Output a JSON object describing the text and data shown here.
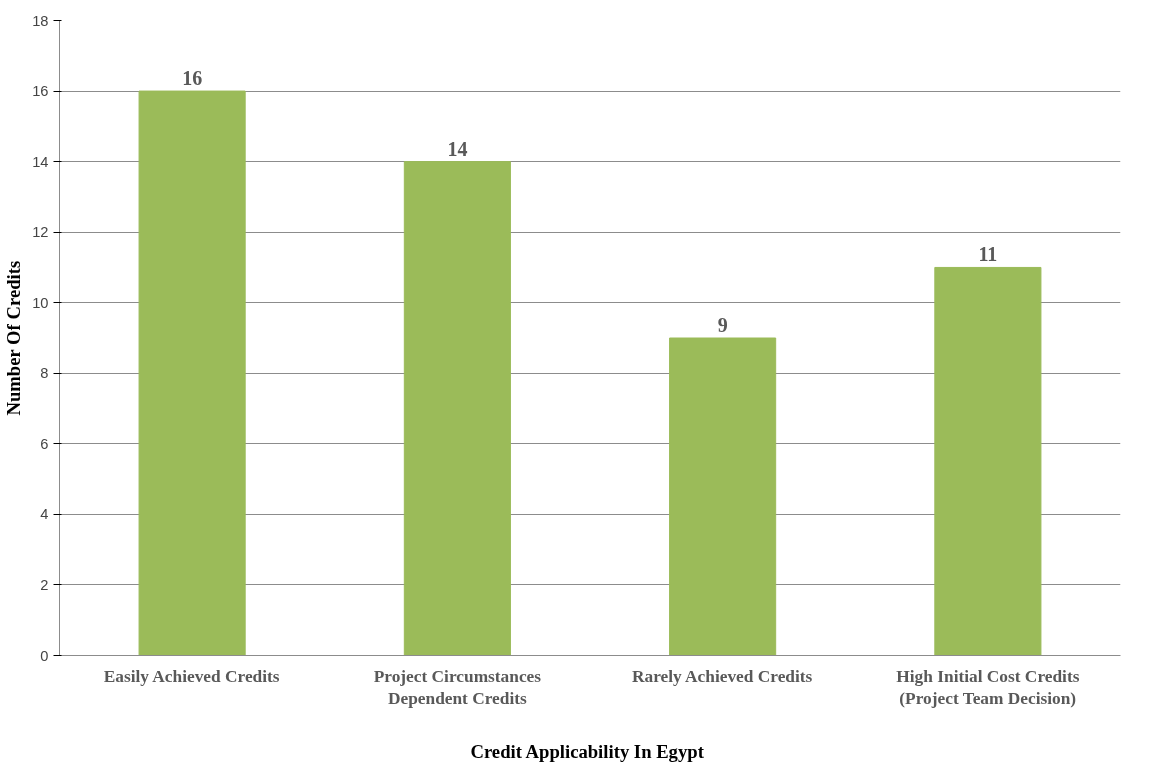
{
  "chart_data": {
    "type": "bar",
    "xlabel": "Credit Applicability  In Egypt",
    "ylabel": "Number Of Credits",
    "categories": [
      "Easily Achieved Credits",
      "Project Circumstances Dependent Credits",
      "Rarely Achieved Credits",
      "High Initial Cost Credits (Project Team Decision)"
    ],
    "values": [
      16,
      14,
      9,
      11
    ],
    "color": "#9bbb59",
    "ylim": [
      0,
      18
    ],
    "yticks": [
      0,
      2,
      4,
      6,
      8,
      10,
      12,
      14,
      16,
      18
    ],
    "grid": "y",
    "data_labels": true
  }
}
